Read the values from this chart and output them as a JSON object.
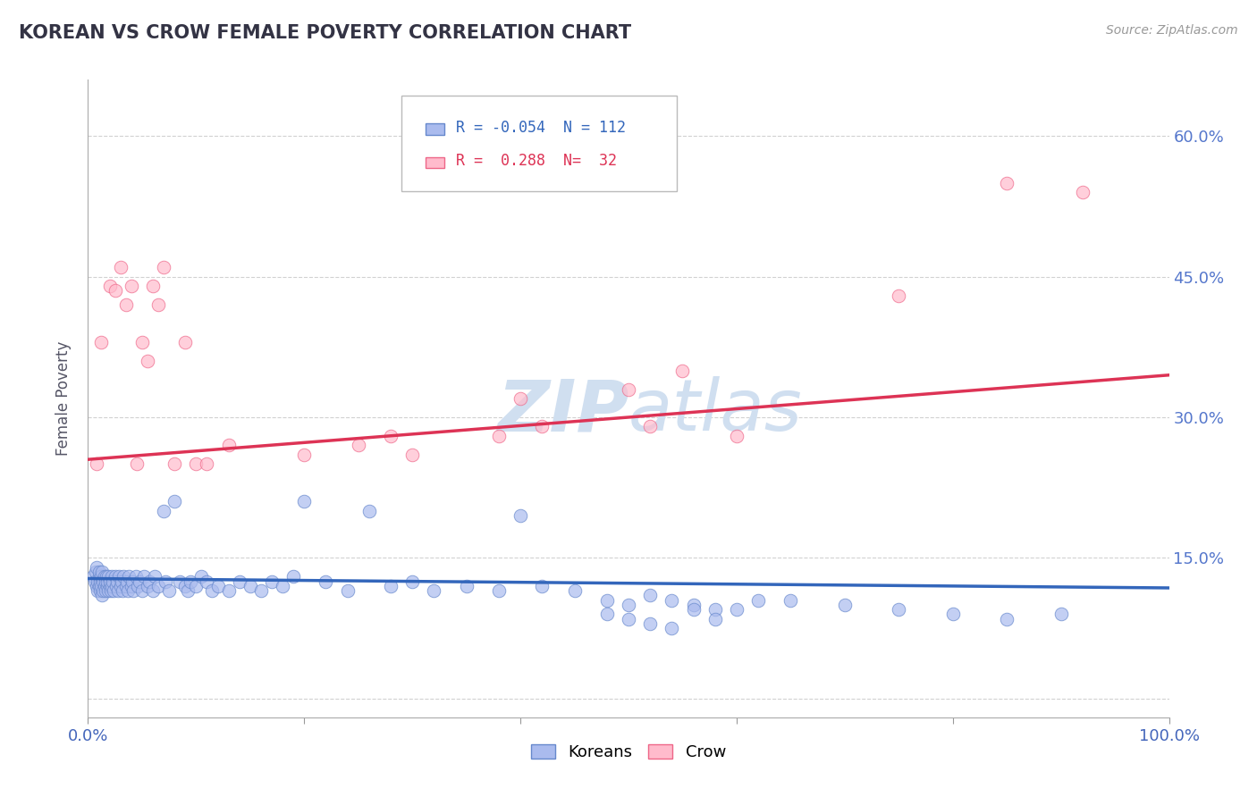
{
  "title": "KOREAN VS CROW FEMALE POVERTY CORRELATION CHART",
  "source_text": "Source: ZipAtlas.com",
  "ylabel": "Female Poverty",
  "legend_korean_r": "-0.054",
  "legend_korean_n": "112",
  "legend_crow_r": "0.288",
  "legend_crow_n": "32",
  "blue_fill": "#aabbee",
  "pink_fill": "#ffbbcc",
  "blue_edge": "#6688cc",
  "pink_edge": "#ee6688",
  "blue_line_color": "#3366bb",
  "pink_line_color": "#dd3355",
  "watermark_color": "#d0dff0",
  "background_color": "#ffffff",
  "grid_color": "#cccccc",
  "title_color": "#333344",
  "axis_label_color": "#4466bb",
  "right_tick_color": "#5577cc",
  "korean_x": [
    0.005,
    0.006,
    0.007,
    0.008,
    0.008,
    0.009,
    0.009,
    0.01,
    0.01,
    0.01,
    0.011,
    0.011,
    0.012,
    0.012,
    0.013,
    0.013,
    0.014,
    0.014,
    0.015,
    0.015,
    0.016,
    0.016,
    0.017,
    0.018,
    0.018,
    0.019,
    0.019,
    0.02,
    0.02,
    0.021,
    0.022,
    0.022,
    0.023,
    0.024,
    0.025,
    0.026,
    0.027,
    0.028,
    0.029,
    0.03,
    0.031,
    0.032,
    0.033,
    0.035,
    0.036,
    0.037,
    0.038,
    0.04,
    0.041,
    0.042,
    0.044,
    0.046,
    0.048,
    0.05,
    0.052,
    0.055,
    0.057,
    0.06,
    0.062,
    0.065,
    0.07,
    0.072,
    0.075,
    0.08,
    0.085,
    0.09,
    0.092,
    0.095,
    0.1,
    0.105,
    0.11,
    0.115,
    0.12,
    0.13,
    0.14,
    0.15,
    0.16,
    0.17,
    0.18,
    0.19,
    0.2,
    0.22,
    0.24,
    0.26,
    0.28,
    0.3,
    0.32,
    0.35,
    0.38,
    0.4,
    0.42,
    0.45,
    0.48,
    0.5,
    0.52,
    0.54,
    0.56,
    0.58,
    0.6,
    0.62,
    0.65,
    0.7,
    0.75,
    0.8,
    0.85,
    0.9,
    0.48,
    0.5,
    0.52,
    0.54,
    0.56,
    0.58
  ],
  "korean_y": [
    0.13,
    0.125,
    0.135,
    0.12,
    0.14,
    0.125,
    0.115,
    0.13,
    0.12,
    0.135,
    0.125,
    0.115,
    0.13,
    0.12,
    0.135,
    0.11,
    0.125,
    0.115,
    0.13,
    0.12,
    0.125,
    0.115,
    0.13,
    0.12,
    0.125,
    0.115,
    0.13,
    0.12,
    0.125,
    0.115,
    0.13,
    0.12,
    0.125,
    0.115,
    0.13,
    0.12,
    0.125,
    0.115,
    0.13,
    0.12,
    0.125,
    0.115,
    0.13,
    0.12,
    0.125,
    0.115,
    0.13,
    0.12,
    0.125,
    0.115,
    0.13,
    0.12,
    0.125,
    0.115,
    0.13,
    0.12,
    0.125,
    0.115,
    0.13,
    0.12,
    0.2,
    0.125,
    0.115,
    0.21,
    0.125,
    0.12,
    0.115,
    0.125,
    0.12,
    0.13,
    0.125,
    0.115,
    0.12,
    0.115,
    0.125,
    0.12,
    0.115,
    0.125,
    0.12,
    0.13,
    0.21,
    0.125,
    0.115,
    0.2,
    0.12,
    0.125,
    0.115,
    0.12,
    0.115,
    0.195,
    0.12,
    0.115,
    0.105,
    0.1,
    0.11,
    0.105,
    0.1,
    0.095,
    0.095,
    0.105,
    0.105,
    0.1,
    0.095,
    0.09,
    0.085,
    0.09,
    0.09,
    0.085,
    0.08,
    0.075,
    0.095,
    0.085
  ],
  "crow_x": [
    0.008,
    0.012,
    0.02,
    0.025,
    0.03,
    0.035,
    0.04,
    0.045,
    0.05,
    0.055,
    0.06,
    0.065,
    0.07,
    0.08,
    0.09,
    0.1,
    0.11,
    0.13,
    0.2,
    0.25,
    0.28,
    0.3,
    0.38,
    0.4,
    0.42,
    0.5,
    0.52,
    0.55,
    0.6,
    0.75,
    0.85,
    0.92
  ],
  "crow_y": [
    0.25,
    0.38,
    0.44,
    0.435,
    0.46,
    0.42,
    0.44,
    0.25,
    0.38,
    0.36,
    0.44,
    0.42,
    0.46,
    0.25,
    0.38,
    0.25,
    0.25,
    0.27,
    0.26,
    0.27,
    0.28,
    0.26,
    0.28,
    0.32,
    0.29,
    0.33,
    0.29,
    0.35,
    0.28,
    0.43,
    0.55,
    0.54
  ],
  "blue_trend_x": [
    0.0,
    1.0
  ],
  "blue_trend_y": [
    0.128,
    0.118
  ],
  "pink_trend_x": [
    0.0,
    1.0
  ],
  "pink_trend_y": [
    0.255,
    0.345
  ],
  "xlim": [
    0.0,
    1.0
  ],
  "ylim": [
    -0.02,
    0.66
  ],
  "yticks": [
    0.0,
    0.15,
    0.3,
    0.45,
    0.6
  ],
  "ytick_labels_right": [
    "",
    "15.0%",
    "30.0%",
    "45.0%",
    "60.0%"
  ],
  "xticks": [
    0.0,
    0.2,
    0.4,
    0.6,
    0.8,
    1.0
  ],
  "xtick_labels": [
    "0.0%",
    "",
    "",
    "",
    "",
    "100.0%"
  ]
}
